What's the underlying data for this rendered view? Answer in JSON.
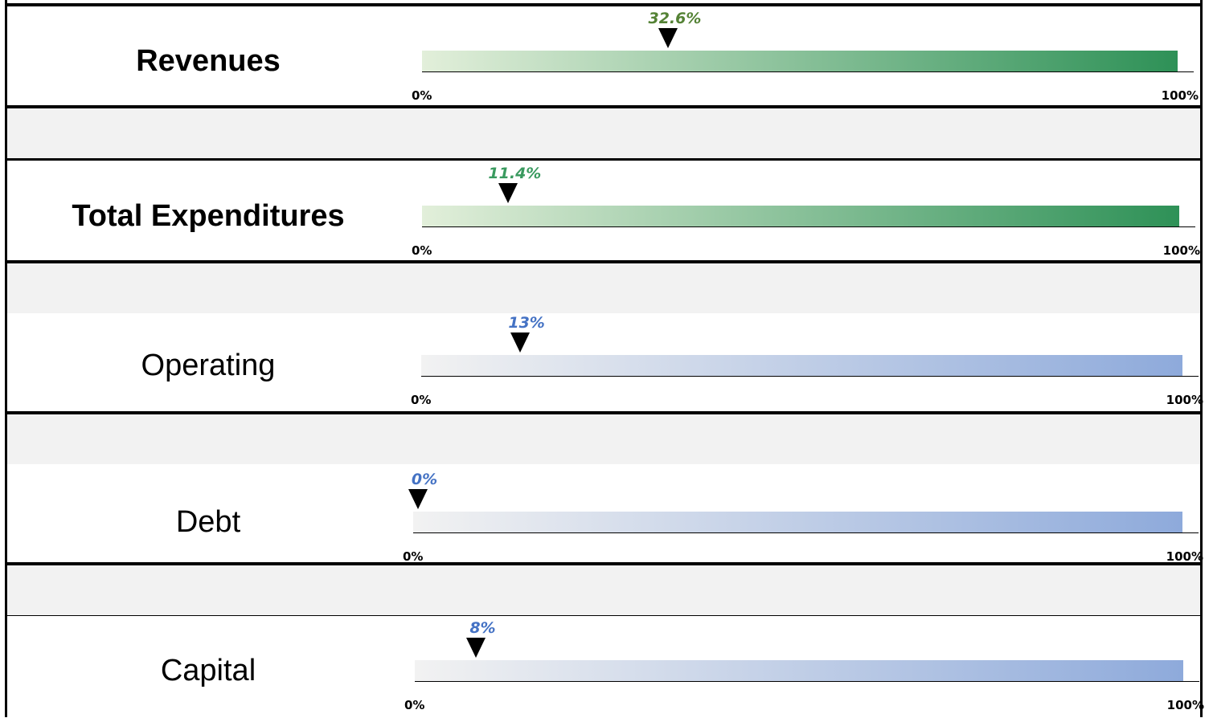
{
  "colors": {
    "green_start": "#e2efda",
    "green_end": "#2e9157",
    "green_value": "#548235",
    "green_value_alt": "#3a9a5f",
    "blue_start": "#f2f2f2",
    "blue_end": "#8eaadb",
    "blue_value": "#4472c4",
    "band": "#f2f2f2"
  },
  "chart_data": {
    "type": "bar",
    "scale_min_label": "0%",
    "scale_max_label": "100%",
    "rows": [
      {
        "label": "Revenues",
        "value": 32.6,
        "value_label": "32.6%",
        "palette": "green",
        "value_color": "#548235",
        "emphasis": "bold"
      },
      {
        "label": "Total Expenditures",
        "value": 11.4,
        "value_label": "11.4%",
        "palette": "green",
        "value_color": "#3a9a5f",
        "emphasis": "bold"
      },
      {
        "label": "Operating",
        "value": 13,
        "value_label": "13%",
        "palette": "blue",
        "value_color": "#4472c4",
        "emphasis": "normal"
      },
      {
        "label": "Debt",
        "value": 0,
        "value_label": "0%",
        "palette": "blue",
        "value_color": "#4472c4",
        "emphasis": "normal"
      },
      {
        "label": "Capital",
        "value": 8,
        "value_label": "8%",
        "palette": "blue",
        "value_color": "#4472c4",
        "emphasis": "normal"
      }
    ]
  }
}
